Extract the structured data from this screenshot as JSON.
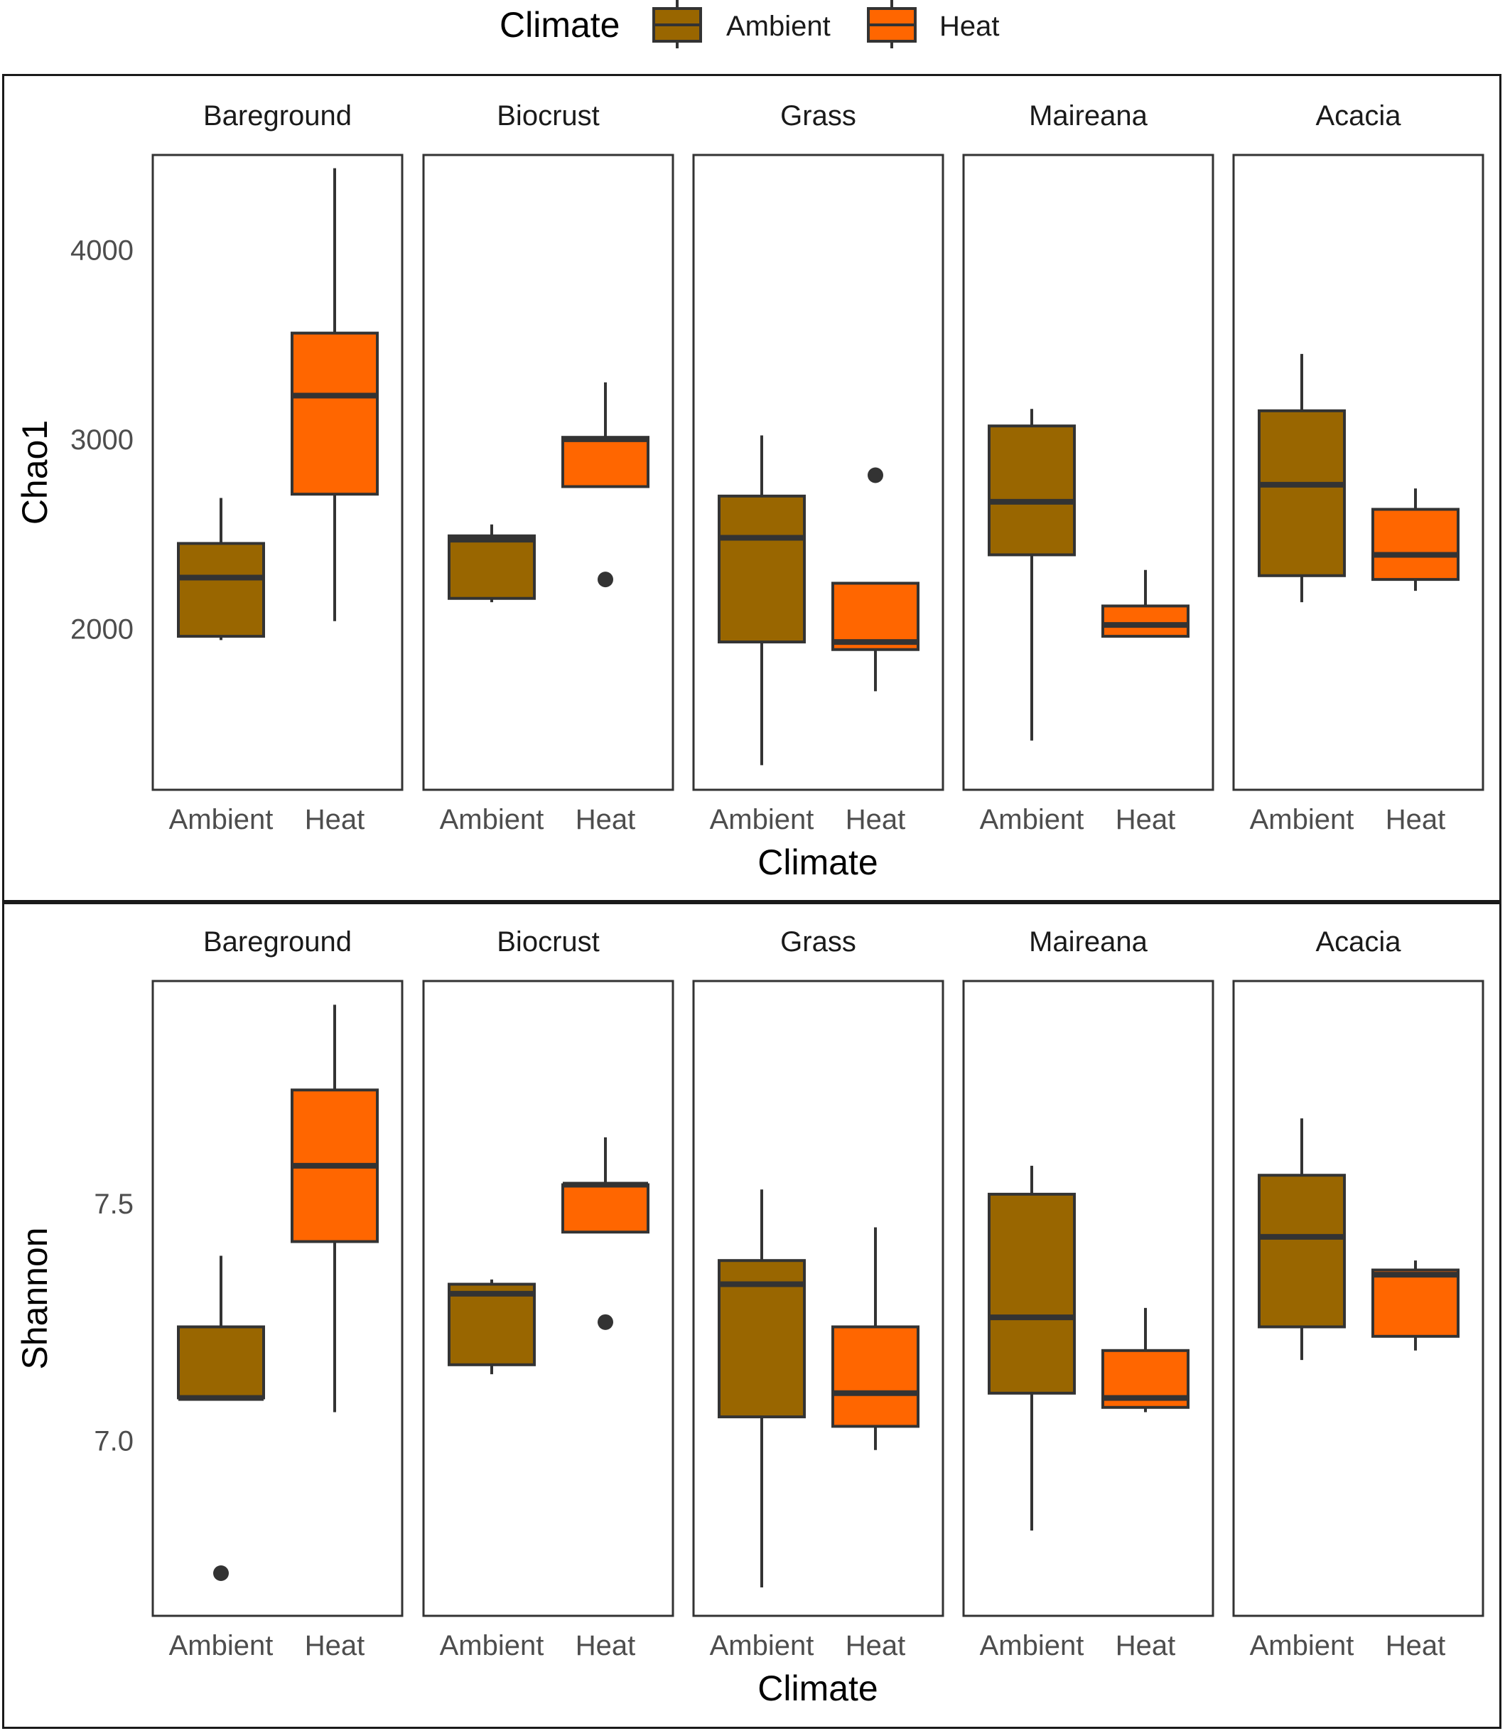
{
  "legend": {
    "title": "Climate",
    "items": [
      {
        "label": "Ambient",
        "color": "#996600"
      },
      {
        "label": "Heat",
        "color": "#FF6600"
      }
    ]
  },
  "chart_data": [
    {
      "type": "boxplot",
      "ylabel": "Chao1",
      "xlabel": "Climate",
      "ylim": [
        1150,
        4500
      ],
      "yticks": [
        2000,
        3000,
        4000
      ],
      "facets": [
        "Bareground",
        "Biocrust",
        "Grass",
        "Maireana",
        "Acacia"
      ],
      "categories": [
        "Ambient",
        "Heat"
      ],
      "boxes": [
        {
          "facet": "Bareground",
          "group": "Ambient",
          "min": 1940,
          "q1": 1960,
          "median": 2270,
          "q3": 2450,
          "max": 2690,
          "outliers": []
        },
        {
          "facet": "Bareground",
          "group": "Heat",
          "min": 2040,
          "q1": 2710,
          "median": 3230,
          "q3": 3560,
          "max": 4430,
          "outliers": []
        },
        {
          "facet": "Biocrust",
          "group": "Ambient",
          "min": 2140,
          "q1": 2160,
          "median": 2470,
          "q3": 2490,
          "max": 2550,
          "outliers": []
        },
        {
          "facet": "Biocrust",
          "group": "Heat",
          "min": 2750,
          "q1": 2750,
          "median": 3000,
          "q3": 3010,
          "max": 3300,
          "outliers": [
            2260
          ]
        },
        {
          "facet": "Grass",
          "group": "Ambient",
          "min": 1280,
          "q1": 1930,
          "median": 2480,
          "q3": 2700,
          "max": 3020,
          "outliers": []
        },
        {
          "facet": "Grass",
          "group": "Heat",
          "min": 1670,
          "q1": 1890,
          "median": 1930,
          "q3": 2240,
          "max": 2240,
          "outliers": [
            2810
          ]
        },
        {
          "facet": "Maireana",
          "group": "Ambient",
          "min": 1410,
          "q1": 2390,
          "median": 2670,
          "q3": 3070,
          "max": 3160,
          "outliers": []
        },
        {
          "facet": "Maireana",
          "group": "Heat",
          "min": 1960,
          "q1": 1960,
          "median": 2020,
          "q3": 2120,
          "max": 2310,
          "outliers": []
        },
        {
          "facet": "Acacia",
          "group": "Ambient",
          "min": 2140,
          "q1": 2280,
          "median": 2760,
          "q3": 3150,
          "max": 3450,
          "outliers": []
        },
        {
          "facet": "Acacia",
          "group": "Heat",
          "min": 2200,
          "q1": 2260,
          "median": 2390,
          "q3": 2630,
          "max": 2740,
          "outliers": []
        }
      ]
    },
    {
      "type": "boxplot",
      "ylabel": "Shannon",
      "xlabel": "Climate",
      "ylim": [
        6.63,
        7.97
      ],
      "yticks": [
        7.0,
        7.5
      ],
      "yticklabels": [
        "7.0",
        "7.5"
      ],
      "facets": [
        "Bareground",
        "Biocrust",
        "Grass",
        "Maireana",
        "Acacia"
      ],
      "categories": [
        "Ambient",
        "Heat"
      ],
      "boxes": [
        {
          "facet": "Bareground",
          "group": "Ambient",
          "min": 7.09,
          "q1": 7.09,
          "median": 7.09,
          "q3": 7.24,
          "max": 7.39,
          "outliers": [
            6.72
          ]
        },
        {
          "facet": "Bareground",
          "group": "Heat",
          "min": 7.06,
          "q1": 7.42,
          "median": 7.58,
          "q3": 7.74,
          "max": 7.92,
          "outliers": []
        },
        {
          "facet": "Biocrust",
          "group": "Ambient",
          "min": 7.14,
          "q1": 7.16,
          "median": 7.31,
          "q3": 7.33,
          "max": 7.34,
          "outliers": []
        },
        {
          "facet": "Biocrust",
          "group": "Heat",
          "min": 7.44,
          "q1": 7.44,
          "median": 7.54,
          "q3": 7.54,
          "max": 7.64,
          "outliers": [
            7.25
          ]
        },
        {
          "facet": "Grass",
          "group": "Ambient",
          "min": 6.69,
          "q1": 7.05,
          "median": 7.33,
          "q3": 7.38,
          "max": 7.53,
          "outliers": []
        },
        {
          "facet": "Grass",
          "group": "Heat",
          "min": 6.98,
          "q1": 7.03,
          "median": 7.1,
          "q3": 7.24,
          "max": 7.45,
          "outliers": []
        },
        {
          "facet": "Maireana",
          "group": "Ambient",
          "min": 6.81,
          "q1": 7.1,
          "median": 7.26,
          "q3": 7.52,
          "max": 7.58,
          "outliers": []
        },
        {
          "facet": "Maireana",
          "group": "Heat",
          "min": 7.06,
          "q1": 7.07,
          "median": 7.09,
          "q3": 7.19,
          "max": 7.28,
          "outliers": []
        },
        {
          "facet": "Acacia",
          "group": "Ambient",
          "min": 7.17,
          "q1": 7.24,
          "median": 7.43,
          "q3": 7.56,
          "max": 7.68,
          "outliers": []
        },
        {
          "facet": "Acacia",
          "group": "Heat",
          "min": 7.19,
          "q1": 7.22,
          "median": 7.35,
          "q3": 7.36,
          "max": 7.38,
          "outliers": []
        }
      ]
    }
  ]
}
